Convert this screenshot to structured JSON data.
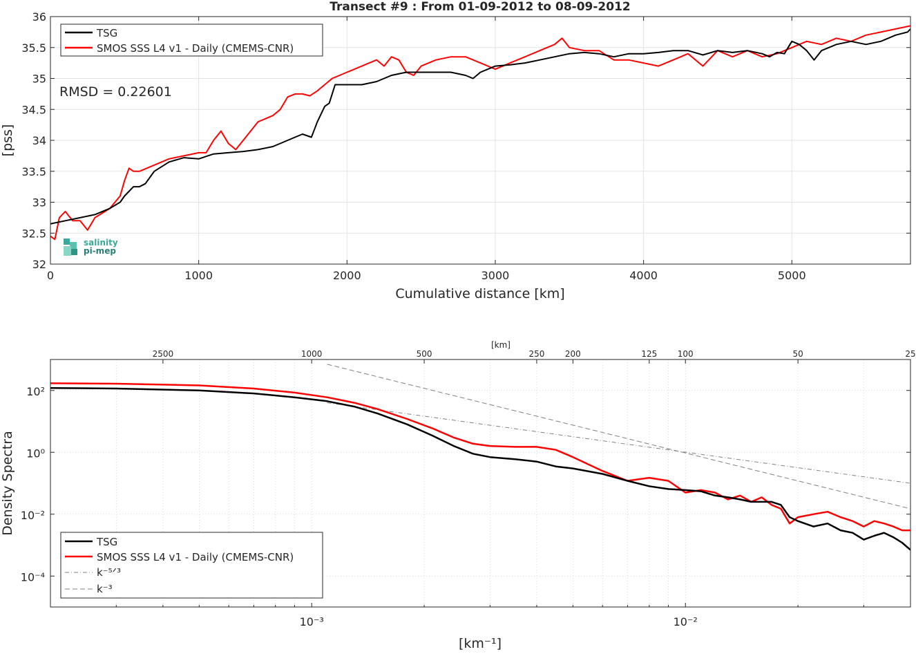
{
  "chart_data": [
    {
      "type": "line",
      "title": "Transect #9 : From 01-09-2012 to 08-09-2012",
      "xlabel": "Cumulative distance [km]",
      "ylabel": "[pss]",
      "xlim": [
        0,
        5800
      ],
      "ylim": [
        32,
        36
      ],
      "x_ticks": [
        "0",
        "1000",
        "2000",
        "3000",
        "4000",
        "5000"
      ],
      "y_ticks": [
        "32",
        "32.5",
        "33",
        "33.5",
        "34",
        "34.5",
        "35",
        "35.5",
        "36"
      ],
      "grid": true,
      "legend_position": "top-left",
      "annotation": "RMSD = 0.22601",
      "logo": {
        "line1": "salinity",
        "line2": "pi-mep"
      },
      "series": [
        {
          "name": "TSG",
          "color": "#000000",
          "x": [
            0,
            100,
            200,
            300,
            400,
            470,
            500,
            560,
            600,
            640,
            700,
            800,
            900,
            1000,
            1100,
            1200,
            1300,
            1400,
            1500,
            1600,
            1700,
            1760,
            1800,
            1820,
            1850,
            1880,
            1920,
            1950,
            2000,
            2100,
            2200,
            2300,
            2400,
            2500,
            2600,
            2700,
            2800,
            2850,
            2900,
            2950,
            3000,
            3100,
            3200,
            3300,
            3400,
            3500,
            3600,
            3700,
            3800,
            3900,
            4000,
            4100,
            4200,
            4300,
            4400,
            4500,
            4600,
            4700,
            4800,
            4850,
            4900,
            4950,
            5000,
            5050,
            5100,
            5150,
            5200,
            5300,
            5400,
            5500,
            5600,
            5700,
            5780,
            5800
          ],
          "values": [
            32.65,
            32.7,
            32.75,
            32.8,
            32.9,
            33.0,
            33.1,
            33.25,
            33.25,
            33.3,
            33.5,
            33.65,
            33.72,
            33.7,
            33.78,
            33.8,
            33.82,
            33.85,
            33.9,
            34.0,
            34.1,
            34.05,
            34.3,
            34.4,
            34.55,
            34.6,
            34.9,
            34.9,
            34.9,
            34.9,
            34.95,
            35.05,
            35.1,
            35.1,
            35.1,
            35.1,
            35.05,
            35.0,
            35.1,
            35.15,
            35.2,
            35.22,
            35.25,
            35.3,
            35.35,
            35.4,
            35.42,
            35.4,
            35.35,
            35.4,
            35.4,
            35.42,
            35.45,
            35.45,
            35.38,
            35.45,
            35.42,
            35.45,
            35.4,
            35.35,
            35.42,
            35.4,
            35.6,
            35.55,
            35.45,
            35.3,
            35.45,
            35.55,
            35.6,
            35.55,
            35.6,
            35.7,
            35.75,
            35.8
          ]
        },
        {
          "name": "SMOS SSS L4 v1 - Daily (CMEMS-CNR)",
          "color": "#ff0000",
          "x": [
            0,
            30,
            60,
            100,
            150,
            200,
            250,
            300,
            400,
            470,
            500,
            530,
            560,
            600,
            700,
            800,
            900,
            1000,
            1050,
            1100,
            1150,
            1200,
            1250,
            1300,
            1350,
            1400,
            1450,
            1500,
            1550,
            1600,
            1650,
            1700,
            1750,
            1800,
            1850,
            1900,
            1950,
            2000,
            2050,
            2100,
            2150,
            2200,
            2250,
            2300,
            2350,
            2400,
            2450,
            2500,
            2600,
            2700,
            2800,
            2900,
            3000,
            3100,
            3200,
            3300,
            3400,
            3450,
            3500,
            3600,
            3700,
            3800,
            3900,
            4000,
            4100,
            4200,
            4300,
            4400,
            4500,
            4600,
            4700,
            4800,
            4900,
            5000,
            5100,
            5200,
            5300,
            5400,
            5500,
            5600,
            5700,
            5800
          ],
          "values": [
            32.45,
            32.4,
            32.75,
            32.85,
            32.7,
            32.7,
            32.55,
            32.75,
            32.9,
            33.1,
            33.35,
            33.55,
            33.5,
            33.5,
            33.6,
            33.7,
            33.75,
            33.8,
            33.8,
            34.0,
            34.15,
            33.95,
            33.85,
            34.0,
            34.15,
            34.3,
            34.35,
            34.4,
            34.5,
            34.7,
            34.75,
            34.75,
            34.72,
            34.8,
            34.9,
            35.0,
            35.05,
            35.1,
            35.15,
            35.2,
            35.25,
            35.3,
            35.2,
            35.35,
            35.3,
            35.1,
            35.05,
            35.2,
            35.3,
            35.35,
            35.35,
            35.25,
            35.15,
            35.25,
            35.35,
            35.45,
            35.55,
            35.65,
            35.5,
            35.45,
            35.45,
            35.3,
            35.3,
            35.25,
            35.2,
            35.3,
            35.4,
            35.2,
            35.45,
            35.35,
            35.45,
            35.35,
            35.4,
            35.5,
            35.6,
            35.55,
            35.65,
            35.6,
            35.7,
            35.75,
            35.8,
            35.85
          ]
        }
      ]
    },
    {
      "type": "line",
      "xlabel": "[km⁻¹]",
      "ylabel": "Density Spectra",
      "xscale": "log",
      "yscale": "log",
      "xlim": [
        0.0002,
        0.04
      ],
      "ylim": [
        1e-05,
        1000
      ],
      "x_ticks": [
        "10⁻³",
        "10⁻²"
      ],
      "x_tick_values": [
        0.001,
        0.01
      ],
      "y_ticks": [
        "10²",
        "10⁰",
        "10⁻²",
        "10⁻⁴"
      ],
      "y_tick_values": [
        100,
        1,
        0.01,
        0.0001
      ],
      "top_axis_label": "[km]",
      "top_ticks": [
        "2500",
        "1000",
        "500",
        "250",
        "200",
        "125",
        "100",
        "50",
        "25"
      ],
      "top_tick_values": [
        2500,
        1000,
        500,
        250,
        200,
        125,
        100,
        50,
        25
      ],
      "grid": true,
      "legend_position": "bottom-left",
      "series": [
        {
          "name": "TSG",
          "color": "#000000",
          "x": [
            0.0002,
            0.0003,
            0.0005,
            0.0007,
            0.0009,
            0.0011,
            0.0013,
            0.0015,
            0.0018,
            0.0021,
            0.0024,
            0.0027,
            0.003,
            0.0035,
            0.004,
            0.0045,
            0.005,
            0.006,
            0.007,
            0.008,
            0.009,
            0.01,
            0.011,
            0.012,
            0.013,
            0.014,
            0.015,
            0.016,
            0.017,
            0.018,
            0.019,
            0.02,
            0.022,
            0.024,
            0.026,
            0.028,
            0.03,
            0.032,
            0.034,
            0.036,
            0.038,
            0.04
          ],
          "values": [
            120,
            115,
            100,
            80,
            60,
            45,
            30,
            18,
            8,
            3.5,
            1.6,
            0.9,
            0.7,
            0.6,
            0.5,
            0.35,
            0.3,
            0.2,
            0.12,
            0.08,
            0.065,
            0.06,
            0.055,
            0.04,
            0.035,
            0.03,
            0.025,
            0.025,
            0.025,
            0.02,
            0.008,
            0.006,
            0.004,
            0.005,
            0.003,
            0.0025,
            0.0015,
            0.002,
            0.0025,
            0.0018,
            0.0012,
            0.0007
          ]
        },
        {
          "name": "SMOS SSS L4 v1 - Daily (CMEMS-CNR)",
          "color": "#ff0000",
          "x": [
            0.0002,
            0.0003,
            0.0005,
            0.0007,
            0.0009,
            0.0011,
            0.0013,
            0.0015,
            0.0018,
            0.0021,
            0.0024,
            0.0027,
            0.003,
            0.0035,
            0.004,
            0.0045,
            0.005,
            0.006,
            0.007,
            0.008,
            0.009,
            0.01,
            0.011,
            0.012,
            0.013,
            0.014,
            0.015,
            0.016,
            0.017,
            0.018,
            0.019,
            0.02,
            0.022,
            0.024,
            0.026,
            0.028,
            0.03,
            0.032,
            0.034,
            0.036,
            0.038,
            0.04
          ],
          "values": [
            170,
            165,
            145,
            115,
            85,
            60,
            40,
            25,
            12,
            6,
            3,
            1.9,
            1.6,
            1.5,
            1.5,
            1.2,
            0.7,
            0.25,
            0.12,
            0.15,
            0.12,
            0.05,
            0.06,
            0.05,
            0.03,
            0.04,
            0.025,
            0.035,
            0.02,
            0.015,
            0.005,
            0.008,
            0.01,
            0.012,
            0.008,
            0.006,
            0.004,
            0.006,
            0.005,
            0.004,
            0.003,
            0.003
          ]
        },
        {
          "name": "k⁻⁵ᐟ³",
          "color": "#808080",
          "style": "dash-dot",
          "x": [
            0.0011,
            0.04
          ],
          "values": [
            40,
            0.1
          ]
        },
        {
          "name": "k⁻³",
          "color": "#808080",
          "style": "dashed",
          "x": [
            0.0011,
            0.04
          ],
          "values": [
            700,
            0.015
          ]
        }
      ]
    }
  ]
}
